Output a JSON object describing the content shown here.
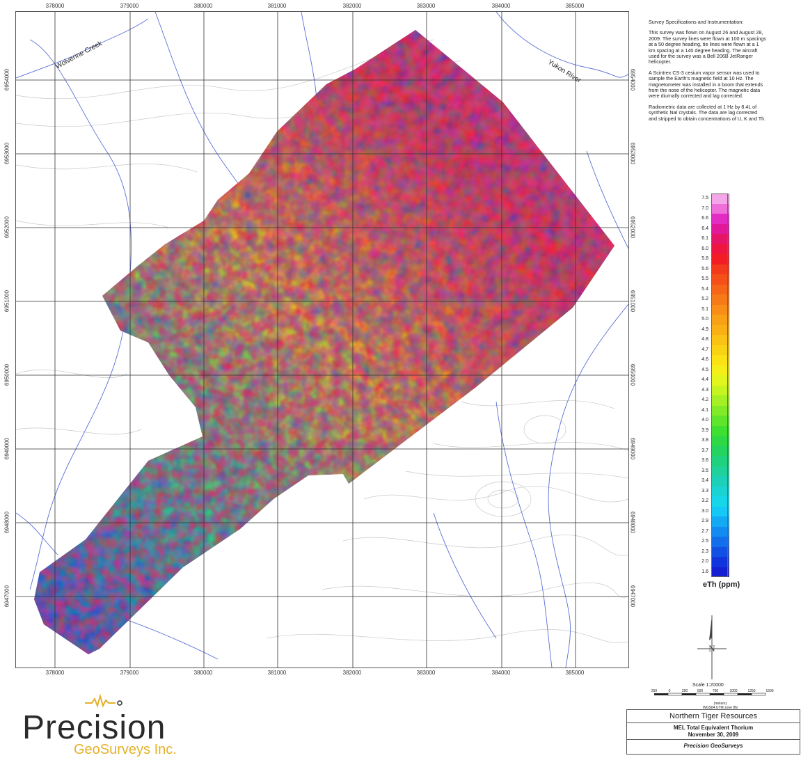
{
  "map": {
    "x_ticks": [
      "378000",
      "379000",
      "380000",
      "381000",
      "382000",
      "383000",
      "384000",
      "385000"
    ],
    "y_ticks": [
      "6954000",
      "6953000",
      "6952000",
      "6951000",
      "6950000",
      "6949000",
      "6948000",
      "6947000"
    ],
    "places": [
      {
        "name": "Wolverine Creek"
      },
      {
        "name": "Yukon River"
      }
    ]
  },
  "specs": {
    "heading": "Survey Specifications and Instrumentation:",
    "p1": "This survey was flown on August 26 and August 28, 2009. The survey lines were flown at 100 m spacings at a 50 degree heading, tie lines were flown at a 1 km spacing at a 140 degree heading. The aircraft used for the survey was a Bell 206B JetRanger helicopter.",
    "p2": "A Scintrex CS-3 cesium vapor sensor was used to sample the Earth's magnetic field at 10 Hz. The magnetometer was installed in a boom that extends from the nose of the helicopter. The magnetic data were diurnally corrected and lag corrected.",
    "p3": "Radiometric data are collected at 1 Hz by 8.4L of synthetic NaI crystals. The data are lag corrected and stripped to obtain concentrations of U, K and Th."
  },
  "legend": {
    "title": "eTh (ppm)",
    "values": [
      "7.5",
      "7.0",
      "6.6",
      "6.4",
      "6.1",
      "6.0",
      "5.8",
      "5.6",
      "5.5",
      "5.4",
      "5.2",
      "5.1",
      "5.0",
      "4.9",
      "4.8",
      "4.7",
      "4.6",
      "4.5",
      "4.4",
      "4.3",
      "4.2",
      "4.1",
      "4.0",
      "3.9",
      "3.8",
      "3.7",
      "3.6",
      "3.5",
      "3.4",
      "3.3",
      "3.2",
      "3.0",
      "2.9",
      "2.7",
      "2.5",
      "2.3",
      "2.0",
      "1.6"
    ],
    "colors": [
      "#f5a6e8",
      "#ee6fd9",
      "#e22cc4",
      "#e01899",
      "#e61466",
      "#ee1640",
      "#f21d24",
      "#f43a1c",
      "#f5501a",
      "#f66619",
      "#f77a18",
      "#f88e17",
      "#f9a116",
      "#f9b015",
      "#fac214",
      "#fad214",
      "#fae214",
      "#f5ef18",
      "#e2f51c",
      "#c6f420",
      "#a5f024",
      "#82eb28",
      "#5fe52c",
      "#3fe032",
      "#2ed945",
      "#25d460",
      "#20d27d",
      "#1fd19b",
      "#1dd1b9",
      "#1ad4d4",
      "#17d6ea",
      "#15c8f5",
      "#13aaf3",
      "#128cf0",
      "#126eea",
      "#1250e4",
      "#1234dc",
      "#1420d2"
    ]
  },
  "north": {
    "label": "N"
  },
  "scale": {
    "title": "Scale 1:20000",
    "ticks": [
      "250",
      "0",
      "250",
      "500",
      "750",
      "1000",
      "1250",
      "1500"
    ],
    "units": "(meters)",
    "datum": "WGS84 UTM zone 8N"
  },
  "title_block": {
    "company": "Northern Tiger Resources",
    "title": "MEL Total Equivalent Thorium",
    "date": "November 30, 2009",
    "firm": "Precision GeoSurveys"
  },
  "logo": {
    "main": "Precision",
    "sub": "GeoSurveys Inc."
  }
}
